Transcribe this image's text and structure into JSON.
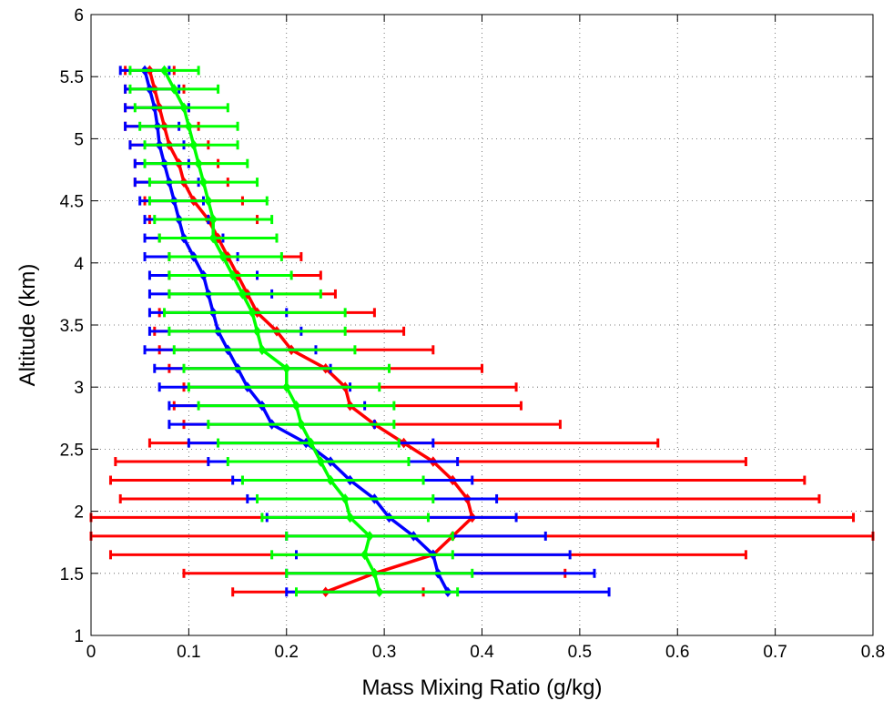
{
  "chart_data": {
    "type": "line",
    "title": "",
    "xlabel": "Mass Mixing Ratio (g/kg)",
    "ylabel": "Altitude (km)",
    "xlim": [
      0,
      0.8
    ],
    "ylim": [
      1,
      6
    ],
    "xticks": [
      0,
      0.1,
      0.2,
      0.3,
      0.4,
      0.5,
      0.6,
      0.7,
      0.8
    ],
    "xtick_labels": [
      "0",
      "0.1",
      "0.2",
      "0.3",
      "0.4",
      "0.5",
      "0.6",
      "0.7",
      "0.8"
    ],
    "yticks": [
      1,
      1.5,
      2,
      2.5,
      3,
      3.5,
      4,
      4.5,
      5,
      5.5,
      6
    ],
    "ytick_labels": [
      "1",
      "1.5",
      "2",
      "2.5",
      "3",
      "3.5",
      "4",
      "4.5",
      "5",
      "5.5",
      "6"
    ],
    "grid": true,
    "altitudes": [
      1.35,
      1.5,
      1.65,
      1.8,
      1.95,
      2.1,
      2.25,
      2.4,
      2.55,
      2.7,
      2.85,
      3.0,
      3.15,
      3.3,
      3.45,
      3.6,
      3.75,
      3.9,
      4.05,
      4.2,
      4.35,
      4.5,
      4.65,
      4.8,
      4.95,
      5.1,
      5.25,
      5.4,
      5.55
    ],
    "series": [
      {
        "color": "#ff0000",
        "values": [
          0.24,
          0.29,
          0.35,
          0.37,
          0.39,
          0.385,
          0.37,
          0.35,
          0.32,
          0.29,
          0.265,
          0.26,
          0.24,
          0.205,
          0.19,
          0.17,
          0.16,
          0.15,
          0.14,
          0.13,
          0.12,
          0.105,
          0.095,
          0.09,
          0.08,
          0.075,
          0.07,
          0.065,
          0.06
        ],
        "err_low": [
          0.145,
          0.095,
          0.02,
          0.0,
          0.0,
          0.03,
          0.02,
          0.025,
          0.06,
          0.095,
          0.085,
          0.095,
          0.08,
          0.07,
          0.065,
          0.07,
          0.08,
          0.08,
          0.08,
          0.07,
          0.06,
          0.055,
          0.045,
          0.045,
          0.04,
          0.035,
          0.035,
          0.035,
          0.035
        ],
        "err_high": [
          0.34,
          0.485,
          0.67,
          0.8,
          0.78,
          0.745,
          0.73,
          0.67,
          0.58,
          0.48,
          0.44,
          0.435,
          0.4,
          0.35,
          0.32,
          0.29,
          0.25,
          0.235,
          0.215,
          0.19,
          0.17,
          0.155,
          0.14,
          0.13,
          0.12,
          0.11,
          0.1,
          0.095,
          0.085
        ]
      },
      {
        "color": "#0000ff",
        "values": [
          0.365,
          0.355,
          0.35,
          0.33,
          0.305,
          0.29,
          0.265,
          0.245,
          0.22,
          0.185,
          0.175,
          0.16,
          0.15,
          0.14,
          0.13,
          0.125,
          0.12,
          0.115,
          0.105,
          0.095,
          0.09,
          0.085,
          0.08,
          0.075,
          0.07,
          0.068,
          0.065,
          0.06,
          0.055
        ],
        "err_low": [
          0.2,
          0.2,
          0.21,
          0.2,
          0.18,
          0.16,
          0.145,
          0.12,
          0.1,
          0.08,
          0.08,
          0.07,
          0.065,
          0.055,
          0.06,
          0.06,
          0.06,
          0.06,
          0.055,
          0.055,
          0.055,
          0.05,
          0.045,
          0.045,
          0.04,
          0.035,
          0.035,
          0.035,
          0.03
        ],
        "err_high": [
          0.53,
          0.515,
          0.49,
          0.465,
          0.435,
          0.415,
          0.39,
          0.375,
          0.35,
          0.29,
          0.28,
          0.265,
          0.245,
          0.23,
          0.215,
          0.2,
          0.185,
          0.17,
          0.15,
          0.135,
          0.12,
          0.115,
          0.11,
          0.1,
          0.095,
          0.09,
          0.1,
          0.09,
          0.08
        ]
      },
      {
        "color": "#00ff00",
        "values": [
          0.295,
          0.29,
          0.28,
          0.285,
          0.265,
          0.26,
          0.245,
          0.235,
          0.225,
          0.215,
          0.21,
          0.2,
          0.2,
          0.175,
          0.17,
          0.165,
          0.155,
          0.145,
          0.135,
          0.125,
          0.125,
          0.12,
          0.115,
          0.11,
          0.105,
          0.1,
          0.095,
          0.085,
          0.075
        ],
        "err_low": [
          0.21,
          0.2,
          0.185,
          0.2,
          0.175,
          0.17,
          0.155,
          0.14,
          0.13,
          0.12,
          0.11,
          0.1,
          0.095,
          0.085,
          0.08,
          0.075,
          0.08,
          0.08,
          0.08,
          0.07,
          0.065,
          0.06,
          0.06,
          0.055,
          0.055,
          0.05,
          0.045,
          0.04,
          0.04
        ],
        "err_high": [
          0.375,
          0.39,
          0.37,
          0.37,
          0.345,
          0.35,
          0.34,
          0.325,
          0.315,
          0.31,
          0.31,
          0.295,
          0.305,
          0.27,
          0.26,
          0.26,
          0.235,
          0.205,
          0.195,
          0.19,
          0.185,
          0.18,
          0.17,
          0.16,
          0.15,
          0.15,
          0.14,
          0.13,
          0.11
        ]
      }
    ]
  }
}
